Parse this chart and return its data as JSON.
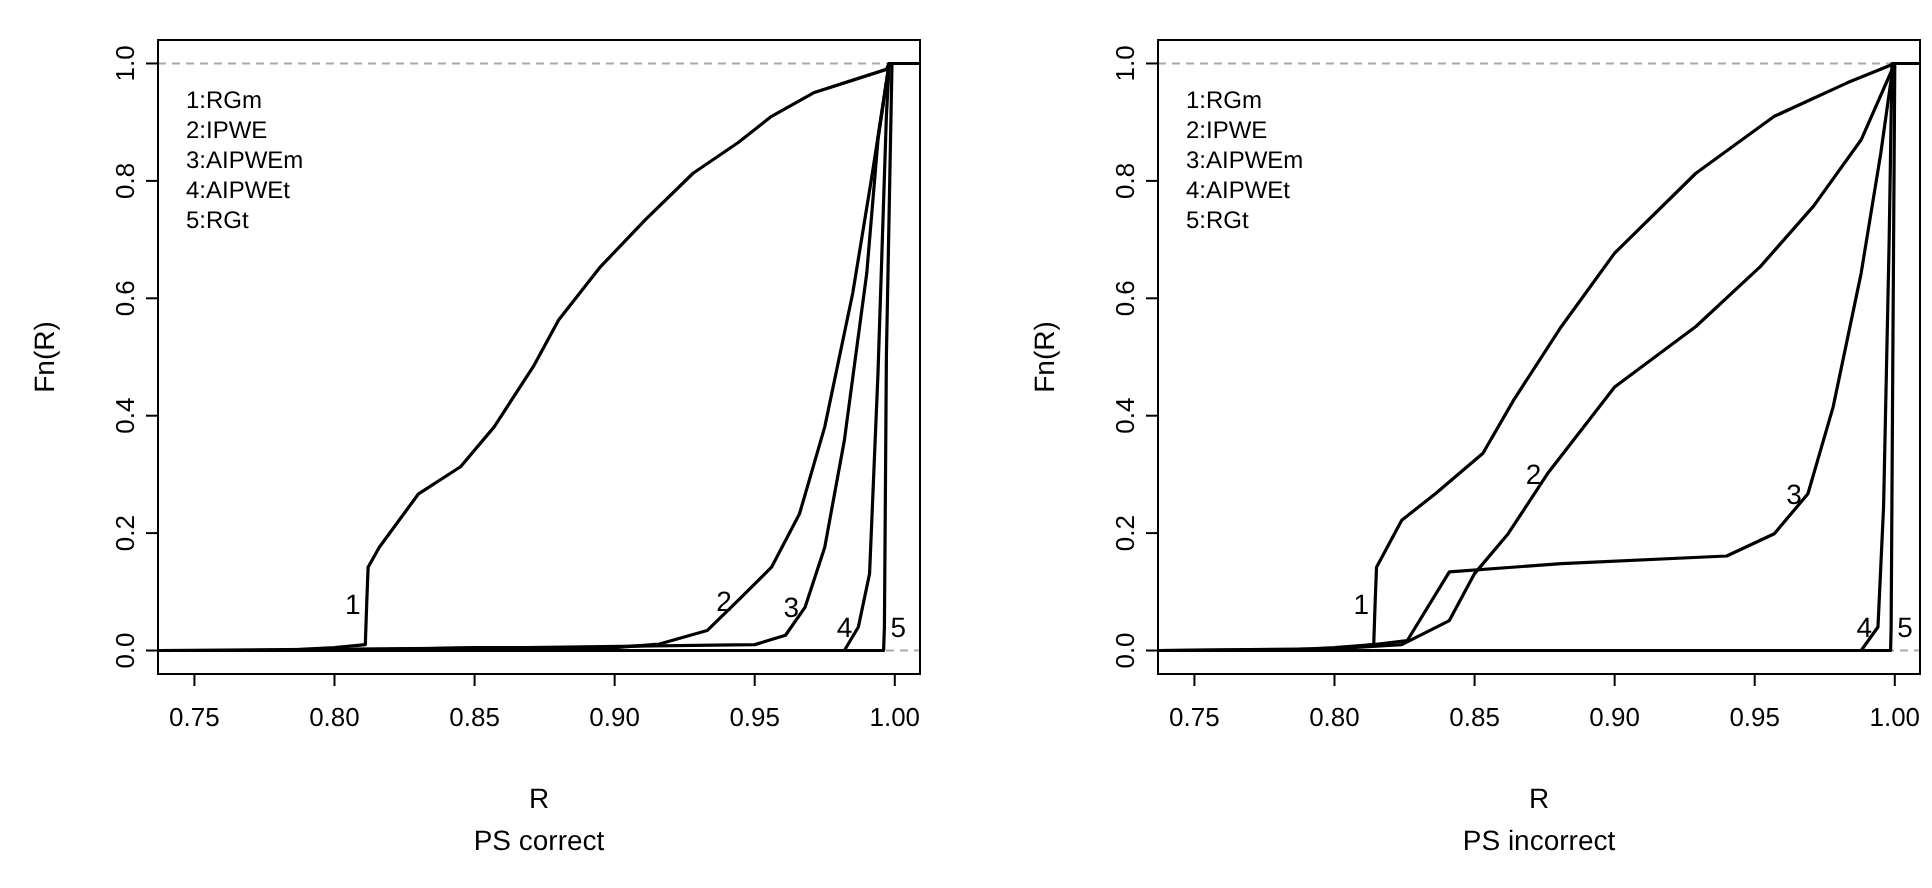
{
  "chart_data": [
    {
      "type": "line",
      "xlabel": "R",
      "subtitle": "PS correct",
      "ylabel": "Fn(R)",
      "xlim": [
        0.737,
        1.009
      ],
      "ylim": [
        -0.04,
        1.04
      ],
      "xticks": [
        {
          "value": 0.75,
          "label": "0.75"
        },
        {
          "value": 0.8,
          "label": "0.80"
        },
        {
          "value": 0.85,
          "label": "0.85"
        },
        {
          "value": 0.9,
          "label": "0.90"
        },
        {
          "value": 0.95,
          "label": "0.95"
        },
        {
          "value": 1.0,
          "label": "1.00"
        }
      ],
      "yticks": [
        {
          "value": 0,
          "label": "0.0"
        },
        {
          "value": 0.2,
          "label": "0.2"
        },
        {
          "value": 0.4,
          "label": "0.4"
        },
        {
          "value": 0.6,
          "label": "0.6"
        },
        {
          "value": 0.8,
          "label": "0.8"
        },
        {
          "value": 1.0,
          "label": "1.0"
        }
      ],
      "grid": false,
      "marker": "none",
      "line_style": "solid",
      "ref_lines": [
        {
          "axis": "y",
          "value": 0,
          "color": "#aaaaaa",
          "line_style": "dashed"
        },
        {
          "axis": "y",
          "value": 1,
          "color": "#aaaaaa",
          "line_style": "dashed"
        }
      ],
      "annotations": [
        "1:RGm",
        "2:IPWE",
        "3:AIPWEm",
        "4:AIPWEt",
        "5:RGt",
        {
          "text": "1",
          "x": 0.8115,
          "y": 0.08
        },
        {
          "text": "2",
          "x": 0.944,
          "y": 0.085
        },
        {
          "text": "3",
          "x": 0.968,
          "y": 0.074
        },
        {
          "text": "4",
          "x": 0.987,
          "y": 0.04
        },
        {
          "text": "5",
          "x": 0.9963,
          "y": 0.04
        }
      ],
      "series": [
        {
          "color": "#000000",
          "x": [
            0.737,
            0.78,
            0.8,
            0.811,
            0.8115,
            0.812,
            0.816,
            0.83,
            0.845,
            0.857,
            0.871,
            0.88,
            0.895,
            0.911,
            0.928,
            0.944,
            0.956,
            0.971,
            0.982,
            0.997,
            0.998,
            1.009
          ],
          "values": [
            0,
            0,
            0.005,
            0.01,
            0.08,
            0.142,
            0.176,
            0.267,
            0.313,
            0.381,
            0.484,
            0.563,
            0.654,
            0.734,
            0.813,
            0.865,
            0.91,
            0.95,
            0.967,
            0.99,
            1,
            1
          ]
        },
        {
          "color": "#000000",
          "x": [
            0.737,
            0.8,
            0.85,
            0.9,
            0.916,
            0.933,
            0.944,
            0.956,
            0.966,
            0.975,
            0.985,
            0.992,
            0.998,
            1.009
          ],
          "values": [
            0,
            0,
            0.005,
            0.005,
            0.011,
            0.034,
            0.085,
            0.142,
            0.233,
            0.381,
            0.609,
            0.813,
            1,
            1
          ]
        },
        {
          "color": "#000000",
          "x": [
            0.737,
            0.85,
            0.95,
            0.961,
            0.968,
            0.975,
            0.982,
            0.99,
            0.994,
            0.998,
            1.009
          ],
          "values": [
            0,
            0.004,
            0.01,
            0.026,
            0.074,
            0.176,
            0.358,
            0.643,
            0.87,
            1,
            1
          ]
        },
        {
          "color": "#000000",
          "x": [
            0.737,
            0.982,
            0.987,
            0.991,
            0.994,
            0.997,
            0.998,
            1.009
          ],
          "values": [
            0,
            0,
            0.04,
            0.131,
            0.472,
            0.91,
            1,
            1
          ]
        },
        {
          "color": "#000000",
          "x": [
            0.737,
            0.996,
            0.9963,
            0.997,
            0.999,
            1.009
          ],
          "values": [
            0,
            0,
            0.04,
            0.5,
            1,
            1
          ]
        }
      ]
    },
    {
      "type": "line",
      "xlabel": "R",
      "subtitle": "PS incorrect",
      "ylabel": "Fn(R)",
      "xlim": [
        0.737,
        1.009
      ],
      "ylim": [
        -0.04,
        1.04
      ],
      "xticks": [
        {
          "value": 0.75,
          "label": "0.75"
        },
        {
          "value": 0.8,
          "label": "0.80"
        },
        {
          "value": 0.85,
          "label": "0.85"
        },
        {
          "value": 0.9,
          "label": "0.90"
        },
        {
          "value": 0.95,
          "label": "0.95"
        },
        {
          "value": 1.0,
          "label": "1.00"
        }
      ],
      "yticks": [
        {
          "value": 0,
          "label": "0.0"
        },
        {
          "value": 0.2,
          "label": "0.2"
        },
        {
          "value": 0.4,
          "label": "0.4"
        },
        {
          "value": 0.6,
          "label": "0.6"
        },
        {
          "value": 0.8,
          "label": "0.8"
        },
        {
          "value": 1.0,
          "label": "1.0"
        }
      ],
      "grid": false,
      "marker": "none",
      "line_style": "solid",
      "ref_lines": [
        {
          "axis": "y",
          "value": 0,
          "color": "#aaaaaa",
          "line_style": "dashed"
        },
        {
          "axis": "y",
          "value": 1,
          "color": "#aaaaaa",
          "line_style": "dashed"
        }
      ],
      "annotations": [
        "1:RGm",
        "2:IPWE",
        "3:AIPWEm",
        "4:AIPWEt",
        "5:RGt",
        {
          "text": "1",
          "x": 0.8145,
          "y": 0.08
        },
        {
          "text": "2",
          "x": 0.876,
          "y": 0.301
        },
        {
          "text": "3",
          "x": 0.969,
          "y": 0.267
        },
        {
          "text": "4",
          "x": 0.994,
          "y": 0.04
        },
        {
          "text": "5",
          "x": 0.9987,
          "y": 0.04
        }
      ],
      "series": [
        {
          "color": "#000000",
          "x": [
            0.737,
            0.78,
            0.8,
            0.814,
            0.8145,
            0.815,
            0.824,
            0.836,
            0.853,
            0.864,
            0.881,
            0.9,
            0.929,
            0.957,
            0.983,
            1.0,
            1.009
          ],
          "values": [
            0,
            0,
            0.005,
            0.01,
            0.08,
            0.142,
            0.222,
            0.267,
            0.336,
            0.427,
            0.552,
            0.677,
            0.813,
            0.91,
            0.967,
            1,
            1
          ]
        },
        {
          "color": "#000000",
          "x": [
            0.737,
            0.8,
            0.824,
            0.841,
            0.85,
            0.862,
            0.876,
            0.9,
            0.929,
            0.952,
            0.971,
            0.988,
            1.0,
            1.009
          ],
          "values": [
            0,
            0.003,
            0.01,
            0.051,
            0.131,
            0.199,
            0.301,
            0.449,
            0.552,
            0.654,
            0.757,
            0.87,
            1,
            1
          ]
        },
        {
          "color": "#000000",
          "x": [
            0.737,
            0.8,
            0.826,
            0.841,
            0.881,
            0.94,
            0.957,
            0.969,
            0.978,
            0.988,
            0.995,
            0.9995,
            1.009
          ],
          "values": [
            0,
            0.002,
            0.017,
            0.134,
            0.148,
            0.161,
            0.199,
            0.267,
            0.415,
            0.643,
            0.847,
            1,
            1
          ]
        },
        {
          "color": "#000000",
          "x": [
            0.737,
            0.988,
            0.994,
            0.996,
            0.998,
            0.999,
            1.009
          ],
          "values": [
            0,
            0,
            0.04,
            0.245,
            0.7,
            1,
            1
          ]
        },
        {
          "color": "#000000",
          "x": [
            0.737,
            0.9985,
            0.9987,
            0.9993,
            1.0,
            1.009
          ],
          "values": [
            0,
            0,
            0.04,
            0.5,
            1,
            1
          ]
        }
      ]
    }
  ]
}
